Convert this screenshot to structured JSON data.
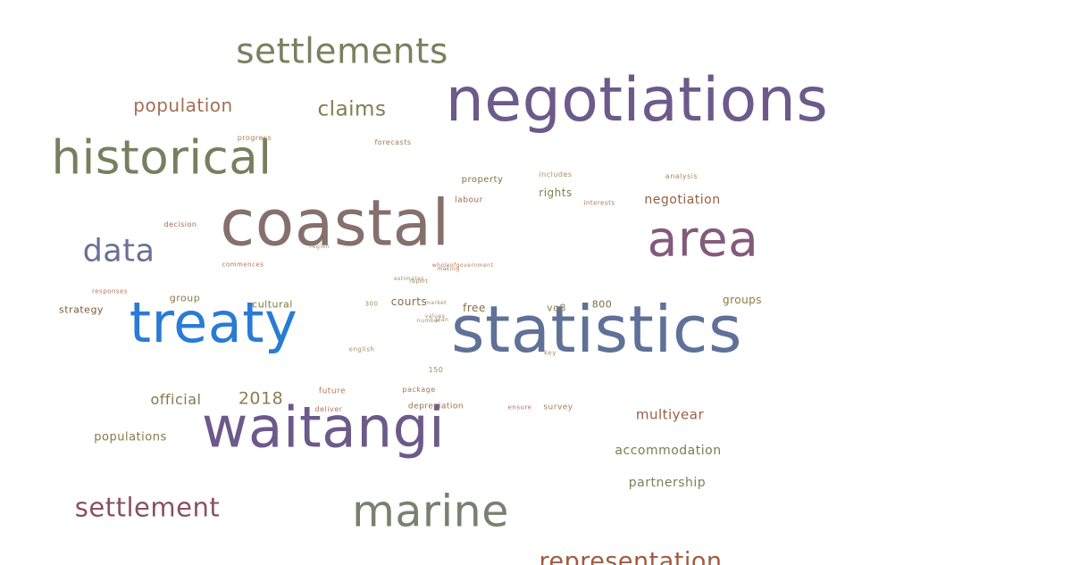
{
  "words": [
    {
      "text": "statistics",
      "weight": 100,
      "color": "#5f7198"
    },
    {
      "text": "negotiations",
      "weight": 95,
      "color": "#6c5a8a"
    },
    {
      "text": "coastal",
      "weight": 98,
      "color": "#86706c"
    },
    {
      "text": "waitangi",
      "weight": 88,
      "color": "#6c5a8a"
    },
    {
      "text": "treaty",
      "weight": 86,
      "color": "#2a7bd4"
    },
    {
      "text": "historical",
      "weight": 76,
      "color": "#76805e"
    },
    {
      "text": "area",
      "weight": 78,
      "color": "#845a7a"
    },
    {
      "text": "marine",
      "weight": 70,
      "color": "#7a806e"
    },
    {
      "text": "settlements",
      "weight": 56,
      "color": "#7a8060"
    },
    {
      "text": "data",
      "weight": 50,
      "color": "#6a7196"
    },
    {
      "text": "settlement",
      "weight": 40,
      "color": "#8a5066"
    },
    {
      "text": "representation",
      "weight": 38,
      "color": "#a25a40"
    },
    {
      "text": "claims",
      "weight": 32,
      "color": "#7f7f52"
    },
    {
      "text": "population",
      "weight": 28,
      "color": "#a36f52"
    },
    {
      "text": "2018",
      "weight": 26,
      "color": "#8e7d53"
    },
    {
      "text": "official",
      "weight": 22,
      "color": "#857a4f"
    },
    {
      "text": "multiyear",
      "weight": 21,
      "color": "#9a5d44"
    },
    {
      "text": "negotiation",
      "weight": 20,
      "color": "#955f44"
    },
    {
      "text": "accommodation",
      "weight": 18,
      "color": "#7b7c4e"
    },
    {
      "text": "partnership",
      "weight": 18,
      "color": "#7d8058"
    },
    {
      "text": "populations",
      "weight": 17,
      "color": "#8c784c"
    },
    {
      "text": "rights",
      "weight": 16,
      "color": "#7e7f4e"
    },
    {
      "text": "courts",
      "weight": 16,
      "color": "#8e6a45"
    },
    {
      "text": "groups",
      "weight": 16,
      "color": "#8c7a47"
    },
    {
      "text": "free",
      "weight": 16,
      "color": "#8a6c48"
    },
    {
      "text": "strategy",
      "weight": 14,
      "color": "#7d5a35"
    },
    {
      "text": "cultural",
      "weight": 14,
      "color": "#807845"
    },
    {
      "text": "group",
      "weight": 14,
      "color": "#8f7a47"
    },
    {
      "text": "800",
      "weight": 14,
      "color": "#7f6a40"
    },
    {
      "text": "vo8",
      "weight": 14,
      "color": "#8a7a55"
    },
    {
      "text": "property",
      "weight": 13,
      "color": "#7e7745"
    },
    {
      "text": "labour",
      "weight": 12,
      "color": "#9b6a4c"
    },
    {
      "text": "depreciation",
      "weight": 12,
      "color": "#9c6a50"
    },
    {
      "text": "future",
      "weight": 12,
      "color": "#b07a56"
    },
    {
      "text": "survey",
      "weight": 12,
      "color": "#a07a55"
    },
    {
      "text": "decision",
      "weight": 11,
      "color": "#a06a50"
    },
    {
      "text": "forecasts",
      "weight": 10,
      "color": "#a07a50"
    },
    {
      "text": "progress",
      "weight": 10,
      "color": "#b08050"
    },
    {
      "text": "includes",
      "weight": 10,
      "color": "#aa8a60"
    },
    {
      "text": "analysis",
      "weight": 10,
      "color": "#aa8a60"
    },
    {
      "text": "interests",
      "weight": 9,
      "color": "#b0704e"
    },
    {
      "text": "commences",
      "weight": 9,
      "color": "#b0704e"
    },
    {
      "text": "responses",
      "weight": 9,
      "color": "#b0704e"
    },
    {
      "text": "deliver",
      "weight": 10,
      "color": "#b0704e"
    },
    {
      "text": "package",
      "weight": 10,
      "color": "#a07a55"
    },
    {
      "text": "ensure",
      "weight": 9,
      "color": "#b0704e"
    },
    {
      "text": "150",
      "weight": 10,
      "color": "#a08a60"
    },
    {
      "text": "300",
      "weight": 9,
      "color": "#a08a60"
    },
    {
      "text": "key",
      "weight": 9,
      "color": "#a08a60"
    },
    {
      "text": "english",
      "weight": 9,
      "color": "#a08a60"
    },
    {
      "text": "wholeofgovernment",
      "weight": 8,
      "color": "#b07a56"
    },
    {
      "text": "making",
      "weight": 8,
      "color": "#b07a56"
    },
    {
      "text": "estimates",
      "weight": 8,
      "color": "#a08a60"
    },
    {
      "text": "report",
      "weight": 8,
      "color": "#a08a60"
    },
    {
      "text": "market",
      "weight": 8,
      "color": "#a08a60"
    },
    {
      "text": "values",
      "weight": 8,
      "color": "#a08a60"
    },
    {
      "text": "region",
      "weight": 8,
      "color": "#a08a60"
    },
    {
      "text": "plan",
      "weight": 8,
      "color": "#a08a60"
    },
    {
      "text": "number",
      "weight": 8,
      "color": "#a08a60"
    }
  ]
}
